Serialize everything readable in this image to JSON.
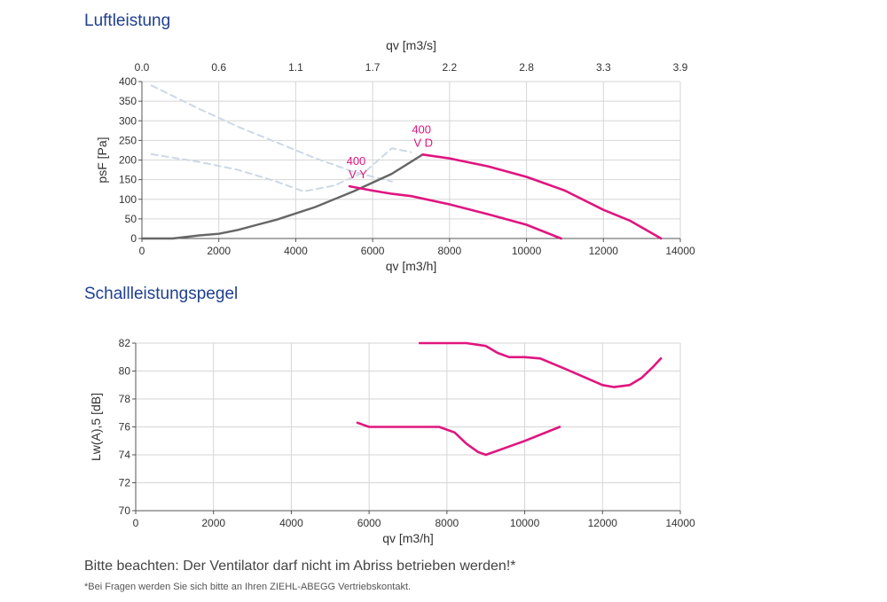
{
  "page": {
    "note": "Bitte beachten: Der Ventilator darf nicht im Abriss betrieben werden!*",
    "footnote": "*Bei Fragen werden Sie sich bitte an Ihren ZIEHL-ABEGG Vertriebskontakt."
  },
  "colors": {
    "accent": "#e0157f",
    "system": "#666666",
    "dashed": "#cdd8e6",
    "title": "#1f3f8f"
  },
  "chart_data": [
    {
      "type": "line",
      "title": "Luftleistung",
      "xlabel": "qv [m3/h]",
      "ylabel": "psF [Pa]",
      "x2label": "qv [m3/s]",
      "xlim": [
        0,
        14000
      ],
      "ylim": [
        0,
        400
      ],
      "xticks": [
        0,
        2000,
        4000,
        6000,
        8000,
        10000,
        12000,
        14000
      ],
      "yticks": [
        0,
        50,
        100,
        150,
        200,
        250,
        300,
        350,
        400
      ],
      "x2ticks": [
        "0.0",
        "0.6",
        "1.1",
        "1.7",
        "2.2",
        "2.8",
        "3.3",
        "3.9"
      ],
      "grid": true,
      "series": [
        {
          "style": "dashed-light",
          "x": [
            250,
            1500,
            2500,
            3500,
            4500,
            5500,
            6500
          ],
          "y": [
            390,
            330,
            285,
            245,
            205,
            170,
            145
          ]
        },
        {
          "style": "dashed-light",
          "x": [
            250,
            1500,
            2500,
            3500,
            4200,
            5000,
            5800,
            6500,
            7000
          ],
          "y": [
            215,
            195,
            175,
            145,
            120,
            135,
            170,
            230,
            220
          ]
        },
        {
          "style": "system",
          "x": [
            0,
            800,
            1500,
            2000,
            2500,
            3000,
            3500,
            4500,
            5500,
            6500,
            7300
          ],
          "y": [
            0,
            0,
            8,
            12,
            22,
            35,
            48,
            80,
            120,
            165,
            214
          ]
        },
        {
          "style": "pink",
          "x": [
            5400,
            6000,
            6500,
            7000,
            8000,
            9000,
            10000,
            10900
          ],
          "y": [
            133,
            122,
            114,
            108,
            87,
            62,
            35,
            0
          ]
        },
        {
          "style": "pink",
          "x": [
            7300,
            8000,
            9000,
            10000,
            11000,
            12000,
            12700,
            13500
          ],
          "y": [
            214,
            204,
            184,
            157,
            122,
            73,
            45,
            0
          ]
        }
      ],
      "annotations": [
        {
          "line1": "400",
          "line2": "V D",
          "x": 6900,
          "y": 250
        },
        {
          "line1": "400",
          "line2": "V Y",
          "x": 5200,
          "y": 170
        }
      ]
    },
    {
      "type": "line",
      "title": "Schallleistungspegel",
      "xlabel": "qv [m3/h]",
      "ylabel": "Lw(A),5 [dB]",
      "xlim": [
        0,
        14000
      ],
      "ylim": [
        70,
        82
      ],
      "xticks": [
        0,
        2000,
        4000,
        6000,
        8000,
        10000,
        12000,
        14000
      ],
      "yticks": [
        70,
        72,
        74,
        76,
        78,
        80,
        82
      ],
      "grid": true,
      "series": [
        {
          "style": "pink",
          "x": [
            7300,
            8500,
            9000,
            9300,
            9600,
            10000,
            10400,
            11000,
            11500,
            12000,
            12300,
            12700,
            13000,
            13300,
            13500
          ],
          "y": [
            82,
            82,
            81.8,
            81.3,
            81.0,
            81.0,
            80.9,
            80.2,
            79.6,
            79.0,
            78.85,
            79.0,
            79.5,
            80.3,
            80.9
          ]
        },
        {
          "style": "pink",
          "x": [
            5700,
            6000,
            7000,
            7800,
            8200,
            8500,
            8800,
            9000,
            9300,
            10000,
            10900
          ],
          "y": [
            76.3,
            76.0,
            76.0,
            76.0,
            75.6,
            74.8,
            74.2,
            74.0,
            74.3,
            75.0,
            76.0
          ]
        }
      ]
    }
  ]
}
